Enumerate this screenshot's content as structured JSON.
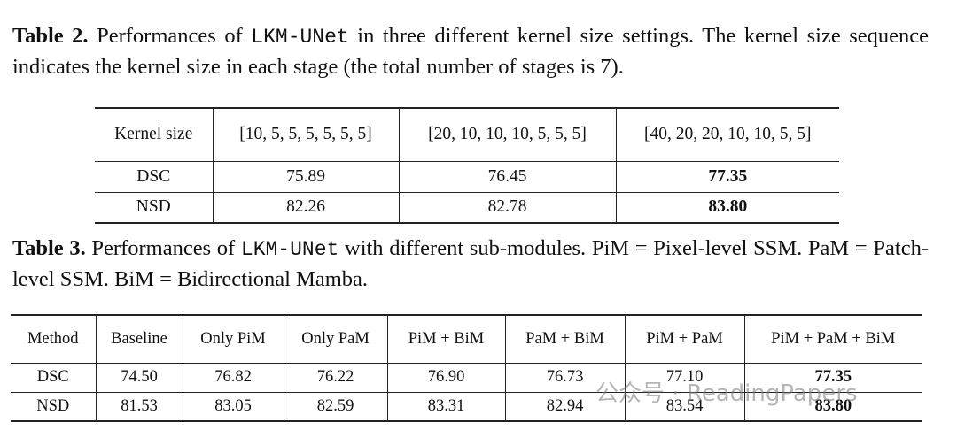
{
  "table2": {
    "caption": {
      "label": "Table 2.",
      "before": "Performances of",
      "code": "LKM-UNet",
      "after": "in three different kernel size settings. The kernel size sequence indicates the kernel size in each stage (the total number of stages is 7)."
    },
    "header": [
      "Kernel size",
      "[10, 5, 5, 5, 5, 5, 5]",
      "[20, 10, 10, 10, 5, 5, 5]",
      "[40, 20, 20, 10, 10, 5, 5]"
    ],
    "rows": [
      [
        "DSC",
        "75.89",
        "76.45",
        "77.35"
      ],
      [
        "NSD",
        "82.26",
        "82.78",
        "83.80"
      ]
    ]
  },
  "table3": {
    "caption": {
      "label": "Table 3.",
      "before": "Performances of",
      "code": "LKM-UNet",
      "after": "with different sub-modules. PiM = Pixel-level SSM. PaM = Patch-level SSM. BiM = Bidirectional Mamba."
    },
    "header": [
      "Method",
      "Baseline",
      "Only PiM",
      "Only PaM",
      "PiM + BiM",
      "PaM + BiM",
      "PiM + PaM",
      "PiM + PaM + BiM"
    ],
    "rows": [
      [
        "DSC",
        "74.50",
        "76.82",
        "76.22",
        "76.90",
        "76.73",
        "77.10",
        "77.35"
      ],
      [
        "NSD",
        "81.53",
        "83.05",
        "82.59",
        "83.31",
        "82.94",
        "83.54",
        "83.80"
      ]
    ]
  },
  "watermark": "公众号 · ReadingPapers"
}
